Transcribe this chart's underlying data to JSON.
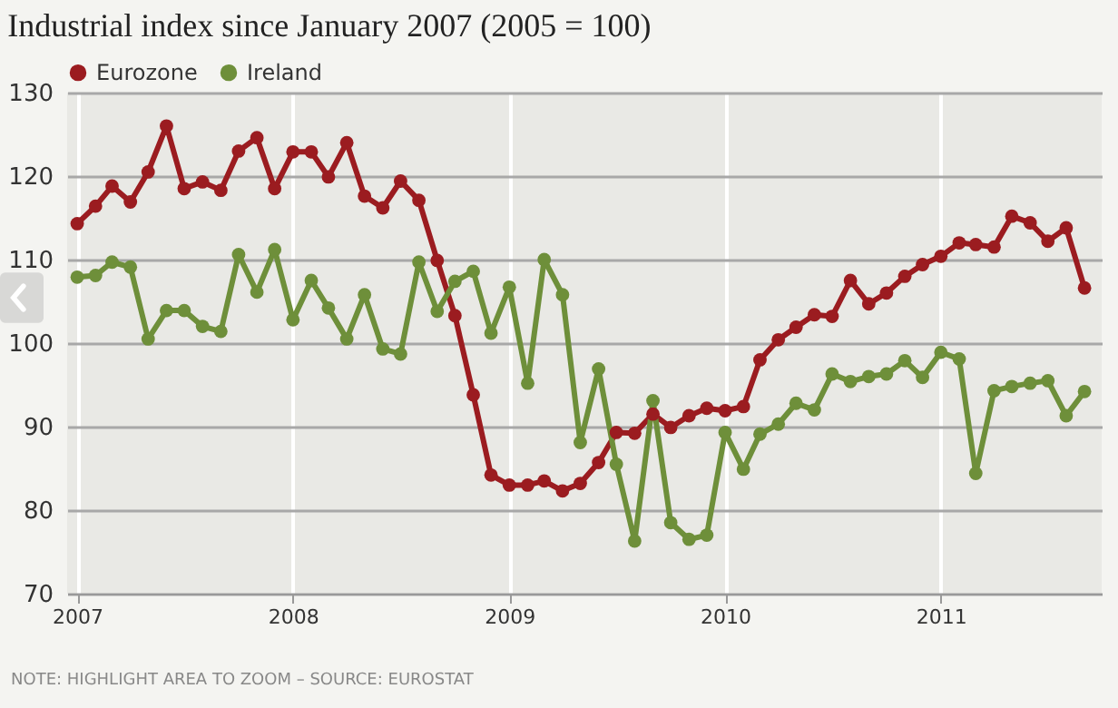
{
  "chart_data": {
    "type": "line",
    "title": "Industrial index since January 2007 (2005 = 100)",
    "x": [
      "2007-01",
      "2007-02",
      "2007-03",
      "2007-04",
      "2007-05",
      "2007-06",
      "2007-07",
      "2007-08",
      "2007-09",
      "2007-10",
      "2007-11",
      "2007-12",
      "2008-01",
      "2008-02",
      "2008-03",
      "2008-04",
      "2008-05",
      "2008-06",
      "2008-07",
      "2008-08",
      "2008-09",
      "2008-10",
      "2008-11",
      "2008-12",
      "2009-01",
      "2009-02",
      "2009-03",
      "2009-04",
      "2009-05",
      "2009-06",
      "2009-07",
      "2009-08",
      "2009-09",
      "2009-10",
      "2009-11",
      "2009-12",
      "2010-01",
      "2010-02",
      "2010-03",
      "2010-04",
      "2010-05",
      "2010-06",
      "2010-07",
      "2010-08",
      "2010-09",
      "2010-10",
      "2010-11",
      "2010-12",
      "2011-01",
      "2011-02",
      "2011-03",
      "2011-04",
      "2011-05",
      "2011-06",
      "2011-07",
      "2011-08",
      "2011-09"
    ],
    "series": [
      {
        "name": "Eurozone",
        "color": "#9b1c20",
        "values": [
          114.3,
          116.4,
          118.8,
          116.9,
          120.5,
          126,
          118.5,
          119.3,
          118.3,
          123,
          124.6,
          118.5,
          122.9,
          122.9,
          119.9,
          124,
          117.6,
          116.2,
          119.4,
          117.1,
          109.9,
          103.3,
          93.8,
          84.2,
          83,
          83,
          83.5,
          82.3,
          83.2,
          85.7,
          89.3,
          89.2,
          91.5,
          89.9,
          91.3,
          92.2,
          91.9,
          92.4,
          98,
          100.4,
          101.9,
          103.4,
          103.2,
          107.5,
          104.7,
          106,
          108,
          109.4,
          110.4,
          112,
          111.8,
          111.5,
          115.2,
          114.4,
          112.2,
          113.8,
          106.6
        ]
      },
      {
        "name": "Ireland",
        "color": "#6e8f3a",
        "values": [
          107.9,
          108.1,
          109.7,
          109.1,
          100.5,
          103.9,
          103.9,
          102,
          101.4,
          110.6,
          106.1,
          111.2,
          102.8,
          107.5,
          104.2,
          100.5,
          105.8,
          99.3,
          98.7,
          109.7,
          103.8,
          107.4,
          108.6,
          101.2,
          106.7,
          95.2,
          110,
          105.8,
          88.1,
          96.9,
          85.5,
          76.3,
          93.1,
          78.5,
          76.5,
          77,
          89.3,
          84.9,
          89.1,
          90.3,
          92.8,
          92,
          96.3,
          95.4,
          96,
          96.3,
          97.9,
          95.9,
          98.9,
          98.1,
          84.4,
          94.3,
          94.8,
          95.2,
          95.5,
          91.3,
          94.2
        ]
      }
    ],
    "xlim": [
      "2006-12-15",
      "2011-09-30"
    ],
    "xticks": [
      "2007",
      "2008",
      "2009",
      "2010",
      "2011"
    ],
    "ylim": [
      70,
      130
    ],
    "yticks": [
      70,
      80,
      90,
      100,
      110,
      120,
      130
    ],
    "grid": true,
    "legend": "top left",
    "marker": "circle",
    "line_style": "solid",
    "annotations": [
      "NOTE: HIGHLIGHT AREA TO ZOOM – SOURCE: EUROSTAT"
    ]
  }
}
